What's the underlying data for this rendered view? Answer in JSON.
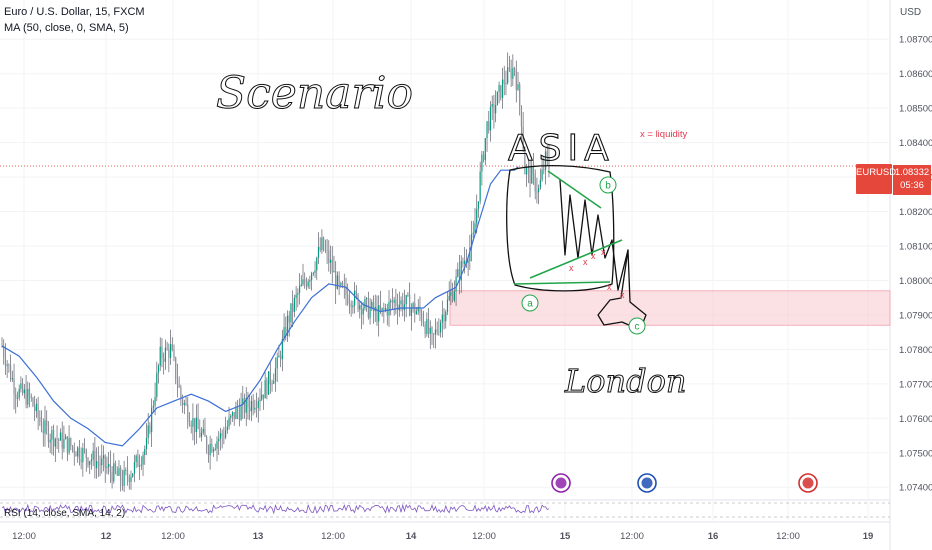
{
  "header": {
    "symbol_line": "Euro / U.S. Dollar, 15, FXCM",
    "ma_line": "MA (50, close, 0, SMA, 5)",
    "currency": "USD"
  },
  "price_tag": {
    "symbol": "EURUSD",
    "price": "1.08332",
    "countdown": "05:36",
    "color": "#e6473b"
  },
  "annotations": {
    "scenario": "Scenario",
    "asia": "ASIA",
    "london": "London",
    "liquidity_note": "x = liquidity",
    "marks": [
      "a",
      "b",
      "c"
    ],
    "liquidity_mark": "x"
  },
  "rsi_label": "RSI (14, close, SMA, 14, 2)",
  "colors": {
    "up_candle": "#089981",
    "down_candle": "#f23645",
    "wick": "#5d606b",
    "ma": "#3c6fd6",
    "rsi": "#7e57c2",
    "zone": "#f7c7cd",
    "marker_green": "#22a54a",
    "marker_red": "#e03a4e"
  },
  "chart_data": {
    "type": "candlestick",
    "timeframe": "15",
    "y_ticks": [
      "1.08700",
      "1.08600",
      "1.08500",
      "1.08400",
      "1.08300",
      "1.08200",
      "1.08100",
      "1.08000",
      "1.07900",
      "1.07800",
      "1.07700",
      "1.07600",
      "1.07500",
      "1.07400"
    ],
    "x_ticks": [
      "12:00",
      "12",
      "12:00",
      "13",
      "12:00",
      "14",
      "12:00",
      "15",
      "12:00",
      "16",
      "12:00",
      "19"
    ],
    "ylim": [
      1.0736,
      1.0875
    ],
    "last_price": 1.08332,
    "ma_path": [
      [
        0,
        1.0781
      ],
      [
        10,
        1.0778
      ],
      [
        20,
        1.0772
      ],
      [
        30,
        1.0765
      ],
      [
        40,
        1.076
      ],
      [
        50,
        1.0757
      ],
      [
        60,
        1.0753
      ],
      [
        70,
        1.0752
      ],
      [
        80,
        1.0757
      ],
      [
        90,
        1.0763
      ],
      [
        100,
        1.0765
      ],
      [
        110,
        1.0767
      ],
      [
        120,
        1.0765
      ],
      [
        130,
        1.0762
      ],
      [
        140,
        1.0764
      ],
      [
        150,
        1.0771
      ],
      [
        160,
        1.078
      ],
      [
        170,
        1.0788
      ],
      [
        180,
        1.0795
      ],
      [
        190,
        1.0799
      ],
      [
        200,
        1.0798
      ],
      [
        210,
        1.0793
      ],
      [
        220,
        1.0791
      ],
      [
        232,
        1.0792
      ],
      [
        245,
        1.0792
      ],
      [
        252,
        1.0795
      ],
      [
        264,
        1.0798
      ],
      [
        270,
        1.0805
      ],
      [
        276,
        1.0815
      ],
      [
        284,
        1.0828
      ],
      [
        290,
        1.0832
      ],
      [
        298,
        1.0832
      ],
      [
        300,
        1.0833
      ]
    ],
    "supply_zone": [
      1.0787,
      1.0797
    ],
    "events": [
      "flash",
      "eu-flag",
      "us-flag"
    ]
  }
}
